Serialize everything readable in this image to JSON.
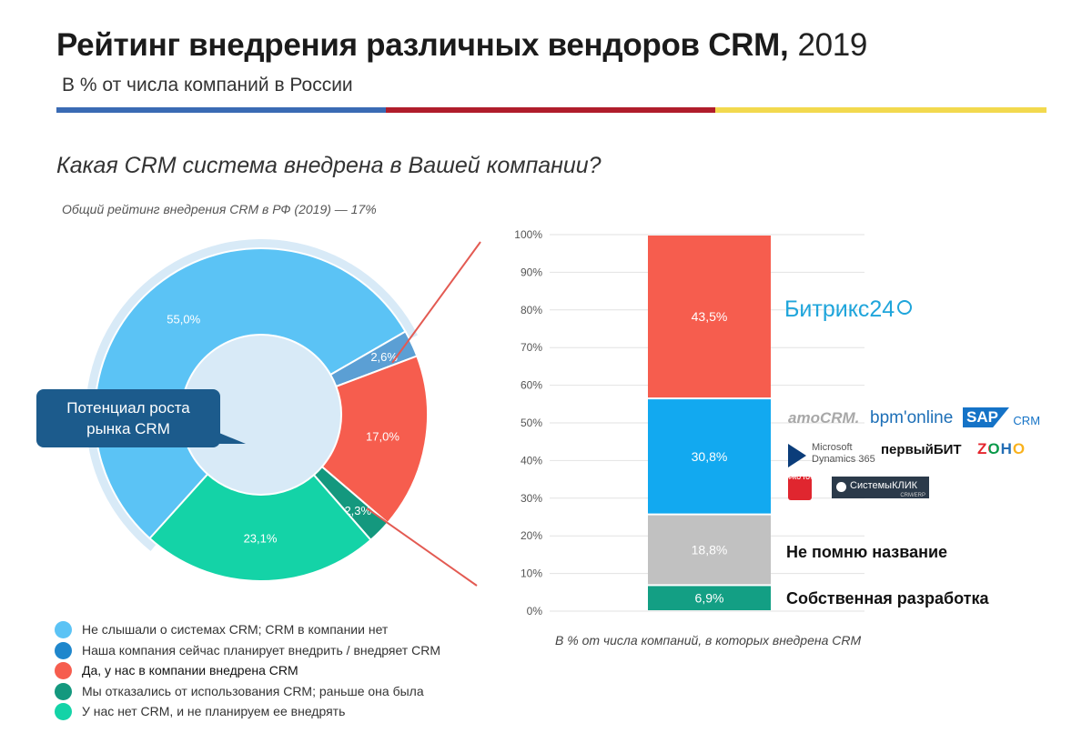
{
  "header": {
    "title": "Рейтинг внедрения различных вендоров CRM,",
    "year": "2019",
    "subtitle": "В % от числа компаний в России",
    "stripe_colors": [
      "#3a6bb4",
      "#b01d2b",
      "#f2d94e"
    ]
  },
  "question": "Какая CRM система внедрена в Вашей компании?",
  "donut": {
    "caption": "Общий рейтинг внедрения CRM в РФ (2019) — 17%",
    "callout": [
      "Потенциал роста",
      "рынка CRM"
    ]
  },
  "legend": [
    {
      "label": "Не слышали о системах CRM; CRM в компании нет",
      "color": "#5bc3f5"
    },
    {
      "label": "Наша компания сейчас планирует внедрить / внедряет CRM",
      "color": "#1f87cc"
    },
    {
      "label": "Да, у нас в компании внедрена CRM",
      "color": "#f65d4e"
    },
    {
      "label": "Мы отказались от использования CRM; раньше она была",
      "color": "#14987e"
    },
    {
      "label": "У нас нет CRM, и не планируем ее внедрять",
      "color": "#14d3a7"
    }
  ],
  "bar": {
    "caption": "В % от числа компаний, в которых внедрена CRM"
  },
  "vendors": {
    "bitrix": "Битрикс24",
    "amocrm": "amoCRM.",
    "bpmonline": "bpm'online",
    "sap": "SAP",
    "sap_suffix": "CRM",
    "microsoft_line1": "Microsoft",
    "microsoft_line2": "Dynamics 365",
    "pervybit": "первыйБИТ",
    "zoho": "ZOHO",
    "sistemaklik": "СистемыКЛИК",
    "sistemaklik_sub": "CRM/ERP",
    "protoy": "PRO TOY",
    "dontremember": "Не помню название",
    "inhouse": "Собственная разработка"
  },
  "chart_data": [
    {
      "type": "pie",
      "variant": "donut",
      "title": "Общий рейтинг внедрения CRM в РФ (2019) — 17%",
      "slices": [
        {
          "label": "Не слышали о системах CRM; CRM в компании нет",
          "value": 55.0,
          "display": "55,0%",
          "color": "#5bc3f5"
        },
        {
          "label": "Наша компания сейчас планирует внедрить / внедряет CRM",
          "value": 2.6,
          "display": "2,6%",
          "color": "#5b9fd4"
        },
        {
          "label": "Да, у нас в компании внедрена CRM",
          "value": 17.0,
          "display": "17,0%",
          "color": "#f65d4e"
        },
        {
          "label": "Мы отказались от использования CRM; раньше она была",
          "value": 2.3,
          "display": "2,3%",
          "color": "#14987e"
        },
        {
          "label": "У нас нет CRM, и не планируем ее внедрять",
          "value": 23.1,
          "display": "23,1%",
          "color": "#14d3a7"
        }
      ]
    },
    {
      "type": "bar",
      "variant": "stacked-100",
      "title": "В % от числа компаний, в которых внедрена CRM",
      "ylim": [
        0,
        100
      ],
      "yticks": [
        "0%",
        "10%",
        "20%",
        "30%",
        "40%",
        "50%",
        "60%",
        "70%",
        "80%",
        "90%",
        "100%"
      ],
      "segments": [
        {
          "label": "Собственная разработка",
          "value": 6.9,
          "display": "6,9%",
          "color": "#139f84"
        },
        {
          "label": "Не помню название",
          "value": 18.8,
          "display": "18,8%",
          "color": "#c1c1c1"
        },
        {
          "label": "amoCRM, bpm'online, SAP CRM, Microsoft Dynamics 365, первыйБИТ, ZOHO, PRO TOY, СистемыКЛИК",
          "value": 30.8,
          "display": "30,8%",
          "color": "#12a9f0"
        },
        {
          "label": "Битрикс24",
          "value": 43.5,
          "display": "43,5%",
          "color": "#f65d4e"
        }
      ]
    }
  ]
}
